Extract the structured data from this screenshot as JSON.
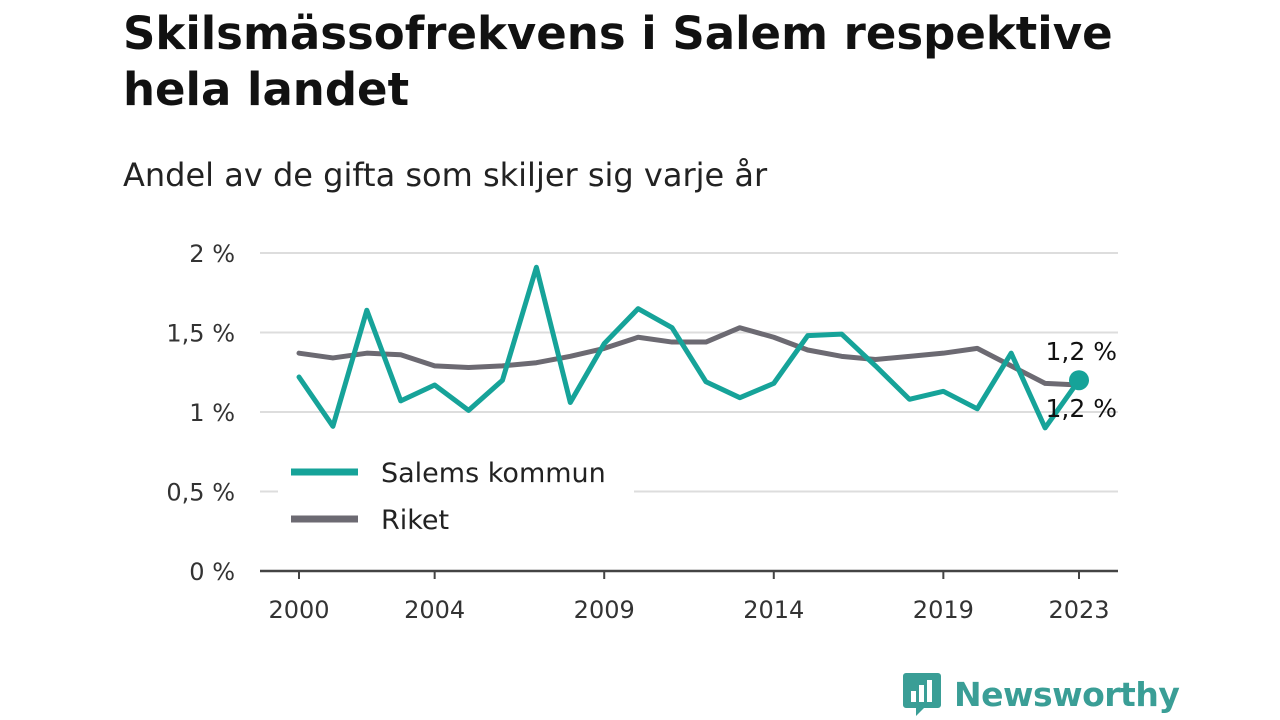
{
  "colors": {
    "salem": "#16a399",
    "riket": "#6c6a72",
    "grid": "#dddddd",
    "axis": "#444444",
    "brand": "#3a9e96"
  },
  "brand": {
    "name": "Newsworthy",
    "icon": "bar-chart-logo-icon"
  },
  "chart_data": {
    "type": "line",
    "title": "Skilsmässofrekvens i Salem respektive hela landet",
    "subtitle": "Andel av de gifta som skiljer sig varje år",
    "ylim": [
      0,
      2
    ],
    "yticks": [
      0,
      0.5,
      1,
      1.5,
      2
    ],
    "ytick_labels": [
      "0 %",
      "0,5 %",
      "1 %",
      "1,5 %",
      "2 %"
    ],
    "xlim": [
      2000,
      2023
    ],
    "xticks": [
      2000,
      2004,
      2009,
      2014,
      2019,
      2023
    ],
    "xtick_labels": [
      "2000",
      "2004",
      "2009",
      "2014",
      "2019",
      "2023"
    ],
    "grid": true,
    "legend_position": "lower-left",
    "x": [
      2000,
      2001,
      2002,
      2003,
      2004,
      2005,
      2006,
      2007,
      2008,
      2009,
      2010,
      2011,
      2012,
      2013,
      2014,
      2015,
      2016,
      2017,
      2018,
      2019,
      2020,
      2021,
      2022,
      2023
    ],
    "series": [
      {
        "name": "Salems kommun",
        "color": "#16a399",
        "values": [
          1.22,
          0.91,
          1.64,
          1.07,
          1.17,
          1.01,
          1.2,
          1.91,
          1.06,
          1.43,
          1.65,
          1.53,
          1.19,
          1.09,
          1.18,
          1.48,
          1.49,
          1.29,
          1.08,
          1.13,
          1.02,
          1.37,
          0.9,
          1.2
        ],
        "end_label": "1,2 %"
      },
      {
        "name": "Riket",
        "color": "#6c6a72",
        "values": [
          1.37,
          1.34,
          1.37,
          1.36,
          1.29,
          1.28,
          1.29,
          1.31,
          1.35,
          1.4,
          1.47,
          1.44,
          1.44,
          1.53,
          1.47,
          1.39,
          1.35,
          1.33,
          1.35,
          1.37,
          1.4,
          1.29,
          1.18,
          1.17
        ],
        "end_label": "1,2 %"
      }
    ]
  }
}
